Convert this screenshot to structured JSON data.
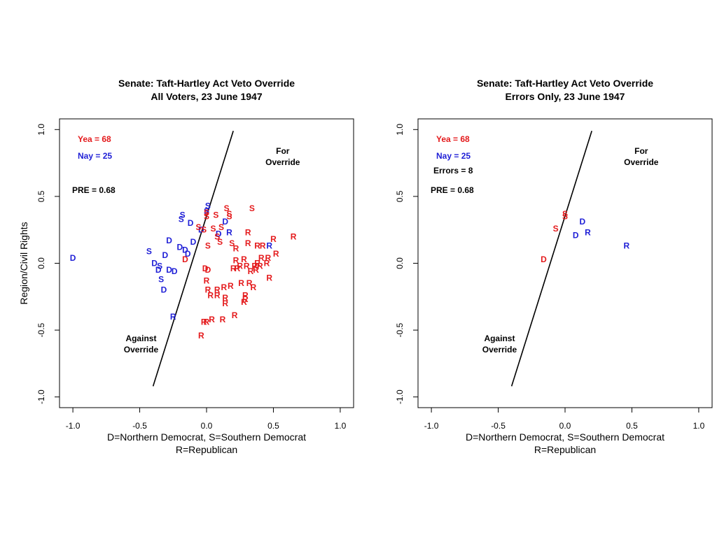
{
  "colors": {
    "yea": "#e41a1c",
    "nay": "#1f1fd6",
    "black": "#000000"
  },
  "chart_data": [
    {
      "type": "scatter",
      "title": "Senate: Taft-Hartley Act Veto Override",
      "subtitle": "All Voters, 23 June 1947",
      "xlabel": "D=Northern Democrat, S=Southern Democrat",
      "xlabel2": "R=Republican",
      "ylabel": "Region/Civil Rights",
      "xlim": [
        -1.1,
        1.1
      ],
      "ylim": [
        -1.08,
        1.08
      ],
      "xticks": [
        "-1.0",
        "-0.5",
        "0.0",
        "0.5",
        "1.0"
      ],
      "yticks": [
        "-1.0",
        "-0.5",
        "0.0",
        "0.5",
        "1.0"
      ],
      "cutline": [
        [
          -0.4,
          -0.92
        ],
        [
          0.2,
          0.99
        ]
      ],
      "stats": {
        "yea": "Yea =  68",
        "nay": "Nay =  25",
        "pre": "PRE =  0.68"
      },
      "labels": {
        "for": "For",
        "for2": "Override",
        "against": "Against",
        "against2": "Override"
      },
      "points": [
        {
          "x": -1.0,
          "y": 0.04,
          "p": "D",
          "v": "nay"
        },
        {
          "x": -0.43,
          "y": 0.09,
          "p": "S",
          "v": "nay"
        },
        {
          "x": -0.39,
          "y": 0.0,
          "p": "D",
          "v": "nay"
        },
        {
          "x": -0.36,
          "y": -0.05,
          "p": "D",
          "v": "nay"
        },
        {
          "x": -0.35,
          "y": -0.02,
          "p": "S",
          "v": "nay"
        },
        {
          "x": -0.34,
          "y": -0.12,
          "p": "S",
          "v": "nay"
        },
        {
          "x": -0.31,
          "y": 0.06,
          "p": "D",
          "v": "nay"
        },
        {
          "x": -0.32,
          "y": -0.2,
          "p": "D",
          "v": "nay"
        },
        {
          "x": -0.28,
          "y": -0.05,
          "p": "D",
          "v": "nay"
        },
        {
          "x": -0.24,
          "y": -0.06,
          "p": "D",
          "v": "nay"
        },
        {
          "x": -0.28,
          "y": 0.17,
          "p": "D",
          "v": "nay"
        },
        {
          "x": -0.2,
          "y": 0.12,
          "p": "D",
          "v": "nay"
        },
        {
          "x": -0.16,
          "y": 0.1,
          "p": "D",
          "v": "nay"
        },
        {
          "x": -0.14,
          "y": 0.07,
          "p": "D",
          "v": "nay"
        },
        {
          "x": -0.16,
          "y": 0.03,
          "p": "D",
          "v": "red"
        },
        {
          "x": -0.18,
          "y": 0.36,
          "p": "S",
          "v": "nay"
        },
        {
          "x": -0.19,
          "y": 0.33,
          "p": "S",
          "v": "nay"
        },
        {
          "x": -0.12,
          "y": 0.3,
          "p": "D",
          "v": "nay"
        },
        {
          "x": -0.04,
          "y": 0.25,
          "p": "D",
          "v": "nay"
        },
        {
          "x": -0.1,
          "y": 0.16,
          "p": "D",
          "v": "nay"
        },
        {
          "x": 0.01,
          "y": 0.43,
          "p": "S",
          "v": "nay"
        },
        {
          "x": 0.0,
          "y": 0.39,
          "p": "S",
          "v": "nay"
        },
        {
          "x": -0.25,
          "y": -0.4,
          "p": "R",
          "v": "nay"
        },
        {
          "x": 0.14,
          "y": 0.31,
          "p": "D",
          "v": "nay"
        },
        {
          "x": 0.17,
          "y": 0.23,
          "p": "R",
          "v": "nay"
        },
        {
          "x": 0.09,
          "y": 0.22,
          "p": "D",
          "v": "nay"
        },
        {
          "x": 0.47,
          "y": 0.13,
          "p": "R",
          "v": "nay"
        },
        {
          "x": 0.0,
          "y": 0.38,
          "p": "S",
          "v": "yea"
        },
        {
          "x": 0.0,
          "y": 0.35,
          "p": "S",
          "v": "yea"
        },
        {
          "x": 0.07,
          "y": 0.36,
          "p": "S",
          "v": "yea"
        },
        {
          "x": 0.15,
          "y": 0.41,
          "p": "S",
          "v": "yea"
        },
        {
          "x": 0.17,
          "y": 0.37,
          "p": "S",
          "v": "yea"
        },
        {
          "x": 0.17,
          "y": 0.35,
          "p": "S",
          "v": "yea"
        },
        {
          "x": 0.34,
          "y": 0.41,
          "p": "S",
          "v": "yea"
        },
        {
          "x": -0.06,
          "y": 0.27,
          "p": "S",
          "v": "yea"
        },
        {
          "x": -0.02,
          "y": 0.25,
          "p": "S",
          "v": "yea"
        },
        {
          "x": 0.05,
          "y": 0.26,
          "p": "S",
          "v": "yea"
        },
        {
          "x": 0.11,
          "y": 0.27,
          "p": "S",
          "v": "yea"
        },
        {
          "x": 0.08,
          "y": 0.2,
          "p": "S",
          "v": "yea"
        },
        {
          "x": 0.1,
          "y": 0.16,
          "p": "S",
          "v": "yea"
        },
        {
          "x": 0.01,
          "y": 0.13,
          "p": "S",
          "v": "yea"
        },
        {
          "x": 0.19,
          "y": 0.15,
          "p": "S",
          "v": "yea"
        },
        {
          "x": 0.31,
          "y": 0.23,
          "p": "R",
          "v": "yea"
        },
        {
          "x": 0.31,
          "y": 0.15,
          "p": "R",
          "v": "yea"
        },
        {
          "x": 0.38,
          "y": 0.13,
          "p": "R",
          "v": "yea"
        },
        {
          "x": 0.42,
          "y": 0.13,
          "p": "R",
          "v": "yea"
        },
        {
          "x": 0.5,
          "y": 0.18,
          "p": "R",
          "v": "yea"
        },
        {
          "x": 0.65,
          "y": 0.2,
          "p": "R",
          "v": "yea"
        },
        {
          "x": 0.22,
          "y": 0.11,
          "p": "R",
          "v": "yea"
        },
        {
          "x": 0.52,
          "y": 0.07,
          "p": "R",
          "v": "yea"
        },
        {
          "x": 0.46,
          "y": 0.04,
          "p": "R",
          "v": "yea"
        },
        {
          "x": 0.41,
          "y": 0.04,
          "p": "R",
          "v": "yea"
        },
        {
          "x": 0.22,
          "y": 0.02,
          "p": "R",
          "v": "yea"
        },
        {
          "x": 0.28,
          "y": 0.03,
          "p": "R",
          "v": "yea"
        },
        {
          "x": 0.25,
          "y": -0.02,
          "p": "R",
          "v": "yea"
        },
        {
          "x": 0.3,
          "y": -0.02,
          "p": "R",
          "v": "yea"
        },
        {
          "x": 0.36,
          "y": -0.02,
          "p": "R",
          "v": "yea"
        },
        {
          "x": 0.38,
          "y": 0.0,
          "p": "R",
          "v": "yea"
        },
        {
          "x": 0.4,
          "y": -0.02,
          "p": "R",
          "v": "yea"
        },
        {
          "x": 0.45,
          "y": 0.0,
          "p": "R",
          "v": "yea"
        },
        {
          "x": 0.2,
          "y": -0.04,
          "p": "R",
          "v": "yea"
        },
        {
          "x": 0.23,
          "y": -0.04,
          "p": "R",
          "v": "yea"
        },
        {
          "x": 0.33,
          "y": -0.06,
          "p": "R",
          "v": "yea"
        },
        {
          "x": 0.37,
          "y": -0.05,
          "p": "R",
          "v": "yea"
        },
        {
          "x": -0.01,
          "y": -0.04,
          "p": "D",
          "v": "yea"
        },
        {
          "x": 0.01,
          "y": -0.05,
          "p": "D",
          "v": "yea"
        },
        {
          "x": 0.47,
          "y": -0.11,
          "p": "R",
          "v": "yea"
        },
        {
          "x": 0.26,
          "y": -0.15,
          "p": "R",
          "v": "yea"
        },
        {
          "x": 0.32,
          "y": -0.15,
          "p": "R",
          "v": "yea"
        },
        {
          "x": 0.35,
          "y": -0.18,
          "p": "R",
          "v": "yea"
        },
        {
          "x": 0.18,
          "y": -0.17,
          "p": "R",
          "v": "yea"
        },
        {
          "x": 0.13,
          "y": -0.18,
          "p": "R",
          "v": "yea"
        },
        {
          "x": 0.08,
          "y": -0.2,
          "p": "R",
          "v": "yea"
        },
        {
          "x": 0.0,
          "y": -0.13,
          "p": "R",
          "v": "yea"
        },
        {
          "x": 0.01,
          "y": -0.2,
          "p": "R",
          "v": "yea"
        },
        {
          "x": 0.03,
          "y": -0.24,
          "p": "R",
          "v": "yea"
        },
        {
          "x": 0.08,
          "y": -0.24,
          "p": "R",
          "v": "yea"
        },
        {
          "x": 0.14,
          "y": -0.26,
          "p": "R",
          "v": "yea"
        },
        {
          "x": 0.14,
          "y": -0.3,
          "p": "R",
          "v": "yea"
        },
        {
          "x": 0.29,
          "y": -0.24,
          "p": "R",
          "v": "yea"
        },
        {
          "x": 0.29,
          "y": -0.27,
          "p": "R",
          "v": "yea"
        },
        {
          "x": 0.28,
          "y": -0.29,
          "p": "R",
          "v": "yea"
        },
        {
          "x": 0.21,
          "y": -0.39,
          "p": "R",
          "v": "yea"
        },
        {
          "x": 0.12,
          "y": -0.42,
          "p": "R",
          "v": "yea"
        },
        {
          "x": 0.04,
          "y": -0.42,
          "p": "R",
          "v": "yea"
        },
        {
          "x": 0.0,
          "y": -0.44,
          "p": "R",
          "v": "yea"
        },
        {
          "x": -0.02,
          "y": -0.44,
          "p": "R",
          "v": "yea"
        },
        {
          "x": -0.04,
          "y": -0.54,
          "p": "R",
          "v": "yea"
        }
      ]
    },
    {
      "type": "scatter",
      "title": "Senate: Taft-Hartley Act Veto Override",
      "subtitle": "Errors Only, 23 June 1947",
      "xlabel": "D=Northern Democrat, S=Southern Democrat",
      "xlabel2": "R=Republican",
      "ylabel": "",
      "xlim": [
        -1.1,
        1.1
      ],
      "ylim": [
        -1.08,
        1.08
      ],
      "xticks": [
        "-1.0",
        "-0.5",
        "0.0",
        "0.5",
        "1.0"
      ],
      "yticks": [
        "-1.0",
        "-0.5",
        "0.0",
        "0.5",
        "1.0"
      ],
      "cutline": [
        [
          -0.4,
          -0.92
        ],
        [
          0.2,
          0.99
        ]
      ],
      "stats": {
        "yea": "Yea =  68",
        "nay": "Nay =  25",
        "errors": "Errors =  8",
        "pre": "PRE =  0.68"
      },
      "labels": {
        "for": "For",
        "for2": "Override",
        "against": "Against",
        "against2": "Override"
      },
      "points": [
        {
          "x": 0.0,
          "y": 0.37,
          "p": "S",
          "v": "yea"
        },
        {
          "x": 0.0,
          "y": 0.35,
          "p": "S",
          "v": "yea"
        },
        {
          "x": -0.07,
          "y": 0.26,
          "p": "S",
          "v": "yea"
        },
        {
          "x": -0.16,
          "y": 0.03,
          "p": "D",
          "v": "yea"
        },
        {
          "x": 0.13,
          "y": 0.31,
          "p": "D",
          "v": "nay"
        },
        {
          "x": 0.17,
          "y": 0.23,
          "p": "R",
          "v": "nay"
        },
        {
          "x": 0.08,
          "y": 0.21,
          "p": "D",
          "v": "nay"
        },
        {
          "x": 0.46,
          "y": 0.13,
          "p": "R",
          "v": "nay"
        }
      ]
    }
  ]
}
